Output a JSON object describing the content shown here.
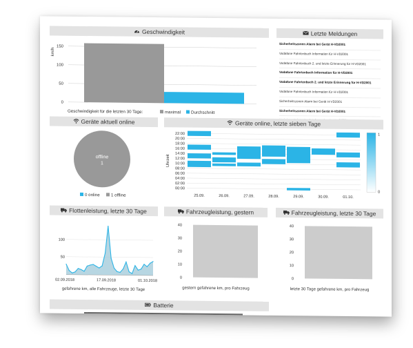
{
  "colors": {
    "accent": "#2bb4e6",
    "gray": "#999999",
    "header_bg": "#e3e3e3",
    "chart_gray": "#cccccc"
  },
  "speed": {
    "title": "Geschwindigkeit",
    "icon": "tachometer-icon",
    "ylabel": "km/h",
    "caption": "Geschwindigkeit für die letzten 30 Tage:",
    "legend_max": "maximal",
    "legend_avg": "Durchschnitt"
  },
  "messages": {
    "title": "Letzte Meldungen",
    "icon": "envelope-icon",
    "items": [
      {
        "text": "Sicherheitszonen Alarm bei Gerät H-VD2001",
        "bold": true
      },
      {
        "text": "Vodafone Fahrtenbuch Information für H-VD2001",
        "bold": false
      },
      {
        "text": "Vodafone Fahrtenbuch 2. und letzte Erinnerung für H-VD2001",
        "bold": false
      },
      {
        "text": "Vodafone Fahrtenbuch Information für H-VD2001",
        "bold": true
      },
      {
        "text": "Vodafone Fahrtenbuch 2. und letzte Erinnerung für H-VD2001",
        "bold": true
      },
      {
        "text": "Vodafone Fahrtenbuch Information für H-VD2001",
        "bold": false
      },
      {
        "text": "Sicherheitszonen Alarm bei Gerät H-VD2001",
        "bold": false
      },
      {
        "text": "Sicherheitszonen Alarm bei Gerät H-VD2001",
        "bold": true
      },
      {
        "text": "Vodafone Fahrtenbuch Information für H-VD2001",
        "bold": false
      }
    ]
  },
  "online_now": {
    "title": "Geräte aktuell online",
    "icon": "wifi-icon",
    "pie_label": "offline",
    "pie_value": "1",
    "legend_online": "0 online",
    "legend_offline": "1 offline"
  },
  "online_week": {
    "title": "Geräte online, letzte sieben Tage",
    "icon": "wifi-icon",
    "ylabel": "Uhrzeit"
  },
  "fleet": {
    "title": "Flottenleistung, letzte 30 Tage",
    "icon": "truck-icon",
    "caption": "gefahrene km, alle Fahrzeuge, letzte 30 Tage"
  },
  "vehicle_yesterday": {
    "title": "Fahrzeugleistung, gestern",
    "icon": "truck-icon",
    "caption": "gestern gefahrene km, pro Fahrzeug"
  },
  "vehicle_30": {
    "title": "Fahrzeugleistung, letzte 30 Tage",
    "icon": "truck-icon",
    "caption": "letzte 30 Tage gefahrene km, pro Fahrzeug"
  },
  "battery": {
    "title": "Batterie",
    "icon": "battery-icon"
  },
  "chart_data": [
    {
      "id": "speed",
      "type": "bar",
      "title": "Geschwindigkeit",
      "ylabel": "km/h",
      "categories": [
        "maximal",
        "Durchschnitt"
      ],
      "values": [
        170,
        32
      ],
      "ylim": [
        0,
        175
      ],
      "yticks": [
        "150",
        "100",
        "50",
        "0"
      ],
      "colors": [
        "#999999",
        "#2bb4e6"
      ]
    },
    {
      "id": "online_now",
      "type": "pie",
      "title": "Geräte aktuell online",
      "labels": [
        "online",
        "offline"
      ],
      "values": [
        0,
        1
      ],
      "colors": [
        "#2bb4e6",
        "#999999"
      ]
    },
    {
      "id": "online_week",
      "type": "heatmap",
      "title": "Geräte online, letzte sieben Tage",
      "ylabel": "Uhrzeit",
      "x_ticks": [
        "25.09.",
        "26.09.",
        "27.09.",
        "28.09.",
        "29.09.",
        "30.09.",
        "01.10."
      ],
      "y_ticks": [
        "22:00",
        "20:00",
        "18:00",
        "16:00",
        "14:00",
        "12:00",
        "10:00",
        "08:00",
        "06:00",
        "04:00",
        "02:00",
        "00:00"
      ],
      "scale_max": "1",
      "scale_min": "0",
      "day_intervals": [
        [
          [
            21,
            23
          ],
          [
            15.5,
            17.5
          ],
          [
            12,
            14
          ],
          [
            8.5,
            11
          ]
        ],
        [
          [
            13.5,
            14.5
          ],
          [
            10.5,
            12.5
          ],
          [
            9,
            10
          ]
        ],
        [
          [
            12,
            17
          ],
          [
            9,
            10.5
          ]
        ],
        [
          [
            13,
            17.5
          ],
          [
            10,
            12
          ]
        ],
        [
          [
            10.5,
            17
          ],
          [
            -0.5,
            0.5
          ]
        ],
        [
          [
            14,
            16.5
          ]
        ],
        [
          [
            21,
            23
          ],
          [
            13,
            15
          ],
          [
            9,
            11
          ]
        ]
      ]
    },
    {
      "id": "fleet",
      "type": "area",
      "title": "Flottenleistung, letzte 30 Tage",
      "x_ticks": [
        "02.09.2018",
        "17.09.2018",
        "01.10.2018"
      ],
      "yticks": [
        "100",
        "50"
      ],
      "ylim": [
        0,
        150
      ],
      "values": [
        30,
        12,
        5,
        8,
        18,
        15,
        10,
        25,
        28,
        30,
        25,
        20,
        26,
        62,
        140,
        48,
        20,
        10,
        8,
        18,
        38,
        10,
        5,
        28,
        15,
        18,
        32,
        25,
        35,
        40
      ],
      "color": "#2bb4e6"
    },
    {
      "id": "vehicle_yesterday",
      "type": "bar",
      "title": "Fahrzeugleistung, gestern",
      "values": [
        40
      ],
      "yticks": [
        "40",
        "30",
        "20",
        "10",
        "0"
      ],
      "ylim": [
        0,
        40
      ],
      "color": "#cccccc"
    },
    {
      "id": "vehicle_30",
      "type": "bar",
      "title": "Fahrzeugleistung, letzte 30 Tage",
      "values": [
        40
      ],
      "yticks": [
        "40",
        "30",
        "20",
        "10",
        "0"
      ],
      "ylim": [
        0,
        40
      ],
      "color": "#cccccc"
    }
  ]
}
